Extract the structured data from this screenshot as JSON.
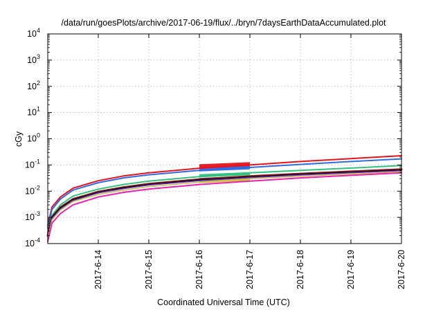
{
  "chart_data": {
    "type": "line",
    "title": "/data/run/goesPlots/archive/2017-06-19/flux/../bryn/7daysEarthDataAccumulated.plot",
    "xlabel": "Coordinated Universal Time (UTC)",
    "ylabel": "cGy",
    "yscale": "log",
    "ylim": [
      0.0001,
      10000
    ],
    "xlim": [
      "2017-06-13 00:00",
      "2017-06-20 00:00"
    ],
    "grid": true,
    "x_ticks": [
      "2017-6-14",
      "2017-6-15",
      "2017-6-16",
      "2017-6-17",
      "2017-6-18",
      "2017-6-19",
      "2017-6-20"
    ],
    "y_ticks": [
      {
        "base": "10",
        "exp": "-4",
        "value": 0.0001
      },
      {
        "base": "10",
        "exp": "-3",
        "value": 0.001
      },
      {
        "base": "10",
        "exp": "-2",
        "value": 0.01
      },
      {
        "base": "10",
        "exp": "-1",
        "value": 0.1
      },
      {
        "base": "10",
        "exp": "0",
        "value": 1
      },
      {
        "base": "10",
        "exp": "1",
        "value": 10
      },
      {
        "base": "10",
        "exp": "2",
        "value": 100
      },
      {
        "base": "10",
        "exp": "3",
        "value": 1000
      },
      {
        "base": "10",
        "exp": "4",
        "value": 10000
      }
    ],
    "x": [
      "2017-06-13 00:00",
      "2017-06-13 02:00",
      "2017-06-13 06:00",
      "2017-06-13 12:00",
      "2017-06-14 00:00",
      "2017-06-14 12:00",
      "2017-06-15 00:00",
      "2017-06-16 00:00",
      "2017-06-17 00:00",
      "2017-06-18 00:00",
      "2017-06-19 00:00",
      "2017-06-20 00:00"
    ],
    "series": [
      {
        "color": "#e8121b",
        "width": 2,
        "values": [
          0.0005,
          0.0025,
          0.006,
          0.013,
          0.025,
          0.038,
          0.05,
          0.075,
          0.1,
          0.135,
          0.175,
          0.225
        ]
      },
      {
        "color": "#2e6be6",
        "width": 2,
        "values": [
          0.0004,
          0.002,
          0.005,
          0.011,
          0.021,
          0.032,
          0.042,
          0.062,
          0.08,
          0.105,
          0.135,
          0.17
        ]
      },
      {
        "color": "#2ec27e",
        "width": 2,
        "values": [
          0.00025,
          0.0012,
          0.003,
          0.0065,
          0.012,
          0.018,
          0.024,
          0.036,
          0.05,
          0.062,
          0.076,
          0.095
        ]
      },
      {
        "color": "#8b1a1a",
        "width": 3,
        "values": [
          0.0002,
          0.001,
          0.0024,
          0.005,
          0.0095,
          0.014,
          0.019,
          0.028,
          0.037,
          0.046,
          0.056,
          0.068
        ]
      },
      {
        "color": "#000000",
        "width": 1.5,
        "values": [
          0.0002,
          0.001,
          0.0023,
          0.0048,
          0.009,
          0.0135,
          0.018,
          0.027,
          0.035,
          0.044,
          0.053,
          0.064
        ]
      },
      {
        "color": "#6a2fc9",
        "width": 1.5,
        "values": [
          0.00018,
          0.0009,
          0.0021,
          0.0044,
          0.0085,
          0.0125,
          0.017,
          0.025,
          0.033,
          0.041,
          0.05,
          0.06
        ]
      },
      {
        "color": "#c8c23a",
        "width": 1.5,
        "values": [
          0.00016,
          0.0008,
          0.0019,
          0.004,
          0.0075,
          0.011,
          0.015,
          0.022,
          0.03,
          0.037,
          0.045,
          0.055
        ]
      },
      {
        "color": "#f01eb4",
        "width": 2,
        "values": [
          0.00012,
          0.0006,
          0.0014,
          0.003,
          0.006,
          0.009,
          0.012,
          0.018,
          0.024,
          0.032,
          0.04,
          0.05
        ]
      }
    ],
    "highlight": {
      "x_start": "2017-06-16 00:00",
      "x_end": "2017-06-17 00:00",
      "bands": [
        {
          "color": "#e8121b",
          "y_low": 0.08,
          "y_high": 0.12
        },
        {
          "color": "#2e6be6",
          "y_low": 0.064,
          "y_high": 0.085
        },
        {
          "color": "#2ec27e",
          "y_low": 0.038,
          "y_high": 0.05
        },
        {
          "color": "#6a2fc9",
          "y_low": 0.028,
          "y_high": 0.036
        },
        {
          "color": "#c8c23a",
          "y_low": 0.023,
          "y_high": 0.029
        }
      ]
    }
  }
}
